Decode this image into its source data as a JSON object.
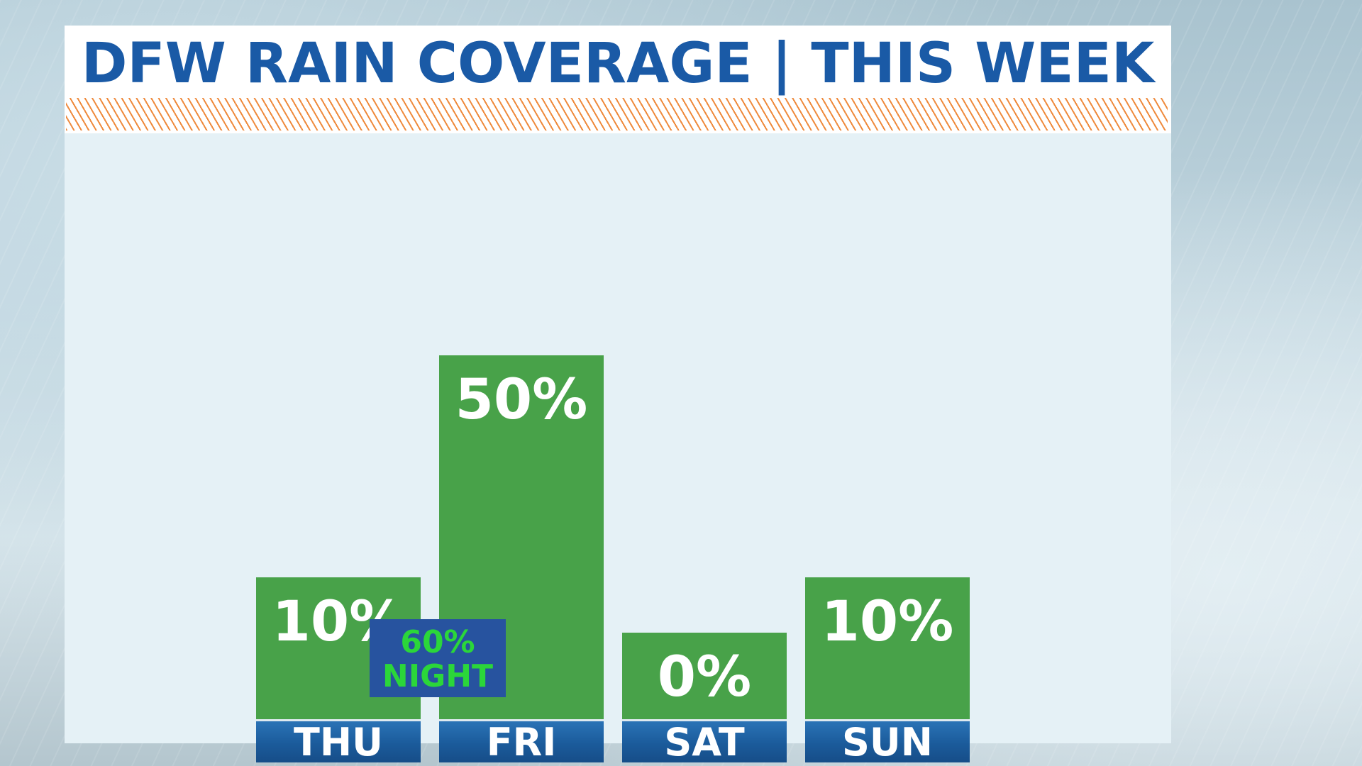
{
  "title": "DFW RAIN COVERAGE | THIS WEEK",
  "colors": {
    "title": "#1a5aa6",
    "bar": "#48a249",
    "day_label_bg": "#1b5b9b",
    "note_bg": "#27539f",
    "note_text": "#2bd63a",
    "hatch": "#ef8a3c"
  },
  "chart_data": {
    "type": "bar",
    "title": "DFW RAIN COVERAGE | THIS WEEK",
    "categories": [
      "THU",
      "FRI",
      "SAT",
      "SUN"
    ],
    "values": [
      10,
      50,
      0,
      10
    ],
    "data_labels": [
      "10%",
      "50%",
      "0%",
      "10%"
    ],
    "unit": "%",
    "grid": false,
    "annotation": {
      "value": "60%",
      "label": "NIGHT",
      "between": [
        "THU",
        "FRI"
      ]
    }
  }
}
